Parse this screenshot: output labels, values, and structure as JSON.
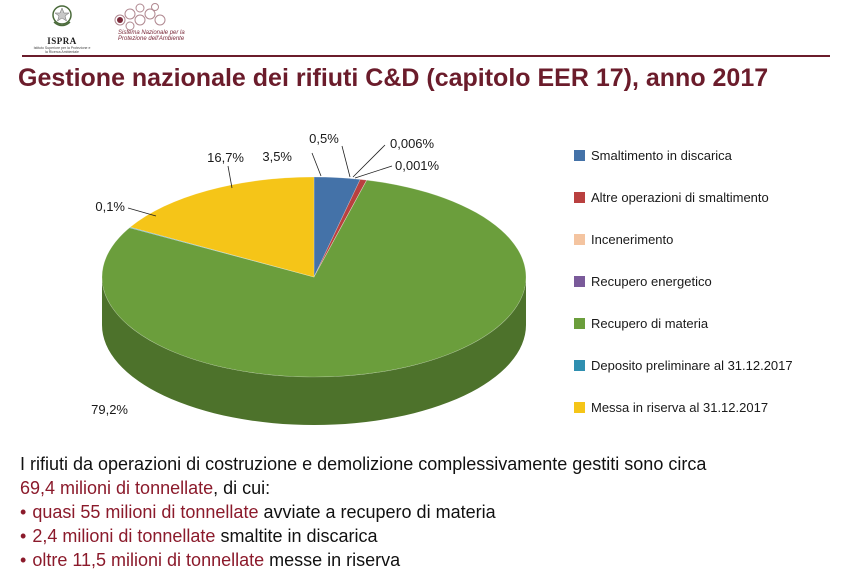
{
  "header": {
    "ispra_name": "ISPRA",
    "ispra_subtitle": "Istituto Superiore per la Protezione e la Ricerca Ambientale",
    "snpa_text": "Sistema Nazionale per la Protezione dell'Ambiente"
  },
  "title": "Gestione nazionale dei rifiuti C&D (capitolo EER 17), anno 2017",
  "chart_data": {
    "type": "pie",
    "title": "Gestione nazionale dei rifiuti C&D (capitolo EER 17), anno 2017",
    "legend_placement": "right",
    "slices": [
      {
        "name": "Smaltimento in discarica",
        "value": 3.5,
        "label": "3,5%",
        "color": "#4472a8"
      },
      {
        "name": "Altre operazioni di smaltimento",
        "value": 0.5,
        "label": "0,5%",
        "color": "#b9403f"
      },
      {
        "name": "Incenerimento",
        "value": 0.006,
        "label": "0,006%",
        "color": "#f4c4a0"
      },
      {
        "name": "Recupero energetico",
        "value": 0.001,
        "label": "0,001%",
        "color": "#7a5a9a"
      },
      {
        "name": "Recupero di materia",
        "value": 79.2,
        "label": "79,2%",
        "color": "#6b9e3c"
      },
      {
        "name": "Deposito preliminare al 31.12.2017",
        "value": 0.1,
        "label": "0,1%",
        "color": "#2f8fb0"
      },
      {
        "name": "Messa in riserva al 31.12.2017",
        "value": 16.7,
        "label": "16,7%",
        "color": "#f5c518"
      }
    ]
  },
  "text": {
    "intro": "I rifiuti da operazioni di costruzione e demolizione complessivamente gestiti sono circa",
    "total_hl": "69,4 milioni di tonnellate",
    "total_rest": ", di cui:",
    "bullets": [
      {
        "hl": "quasi 55 milioni di tonnellate",
        "rest": " avviate a recupero di materia"
      },
      {
        "hl": "2,4 milioni di tonnellate",
        "rest": " smaltite in discarica"
      },
      {
        "hl": "oltre 11,5 milioni di tonnellate",
        "rest": " messe in riserva"
      }
    ]
  }
}
